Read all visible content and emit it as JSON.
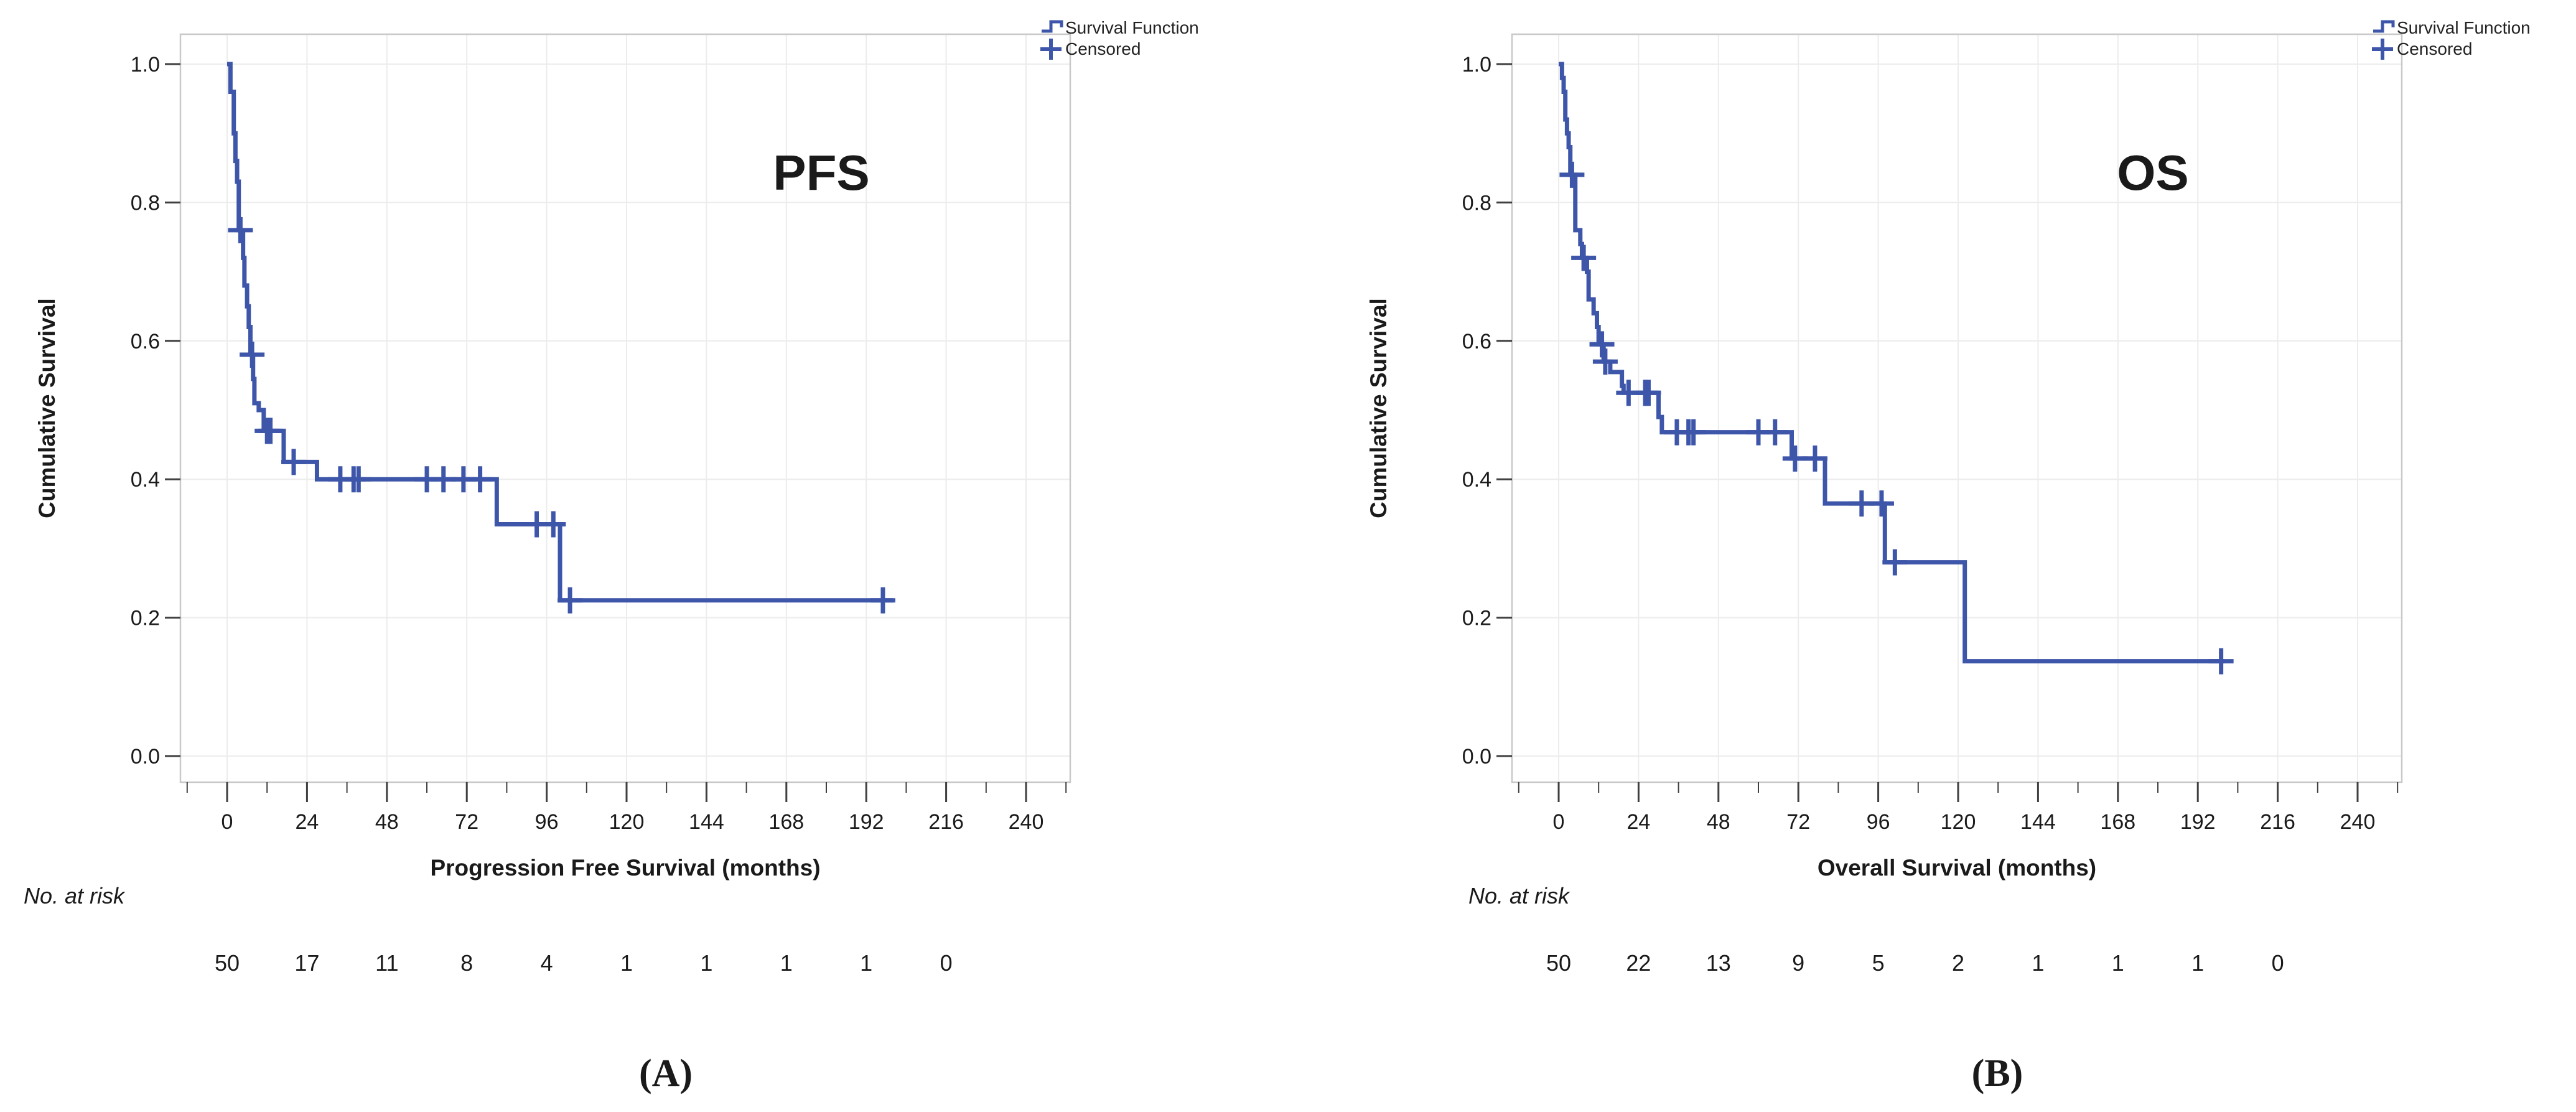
{
  "figure": {
    "description": "Two Kaplan-Meier survival plots side by side",
    "panels": [
      "A",
      "B"
    ]
  },
  "colors": {
    "curve_blue": "#3E56A9",
    "grid": "#ECECEC",
    "frame": "#C9C9C9",
    "tick": "#3F3F3F",
    "text": "#1A1A1A",
    "legend_text": "#222222",
    "background": "#FFFFFF"
  },
  "chart_data": [
    {
      "type": "line",
      "subtype": "kaplan-meier-step",
      "panel_caption": "(A)",
      "plot_label": "PFS",
      "title": "",
      "xlabel": "Progression Free Survival (months)",
      "ylabel": "Cumulative Survival",
      "xticks": [
        0,
        24,
        48,
        72,
        96,
        120,
        144,
        168,
        192,
        216,
        240
      ],
      "yticks": [
        0.0,
        0.2,
        0.4,
        0.6,
        0.8,
        1.0
      ],
      "xlim": [
        -14,
        253
      ],
      "ylim": [
        -0.038,
        1.043
      ],
      "grid": true,
      "legend_position": "top-right-outside",
      "legend": [
        "Survival Function",
        "Censored"
      ],
      "risk_label": "No. at risk",
      "risk_times": [
        0,
        24,
        48,
        72,
        96,
        120,
        144,
        168,
        192,
        216
      ],
      "risk_counts": [
        50,
        17,
        11,
        8,
        4,
        1,
        1,
        1,
        1,
        0
      ],
      "start": [
        0,
        1.0
      ],
      "end_time": 200,
      "steps": [
        [
          1,
          0.96
        ],
        [
          2,
          0.9
        ],
        [
          2.5,
          0.86
        ],
        [
          3,
          0.83
        ],
        [
          3.5,
          0.76
        ],
        [
          4.8,
          0.72
        ],
        [
          5.2,
          0.68
        ],
        [
          6,
          0.65
        ],
        [
          6.5,
          0.62
        ],
        [
          7,
          0.58
        ],
        [
          7.8,
          0.545
        ],
        [
          8.2,
          0.51
        ],
        [
          9.5,
          0.5
        ],
        [
          11,
          0.47
        ],
        [
          17,
          0.425
        ],
        [
          27,
          0.4
        ],
        [
          81,
          0.335
        ],
        [
          100,
          0.225
        ]
      ],
      "censored": [
        [
          4,
          0.76
        ],
        [
          7.5,
          0.58
        ],
        [
          12,
          0.47
        ],
        [
          13,
          0.47
        ],
        [
          20,
          0.425
        ],
        [
          34,
          0.4
        ],
        [
          38,
          0.4
        ],
        [
          39.5,
          0.4
        ],
        [
          60,
          0.4
        ],
        [
          65,
          0.4
        ],
        [
          71,
          0.4
        ],
        [
          76,
          0.4
        ],
        [
          93,
          0.335
        ],
        [
          98,
          0.335
        ],
        [
          103,
          0.225
        ],
        [
          197,
          0.225
        ]
      ]
    },
    {
      "type": "line",
      "subtype": "kaplan-meier-step",
      "panel_caption": "(B)",
      "plot_label": "OS",
      "title": "",
      "xlabel": "Overall Survival (months)",
      "ylabel": "Cumulative Survival",
      "xticks": [
        0,
        24,
        48,
        72,
        96,
        120,
        144,
        168,
        192,
        216,
        240
      ],
      "yticks": [
        0.0,
        0.2,
        0.4,
        0.6,
        0.8,
        1.0
      ],
      "xlim": [
        -14,
        253
      ],
      "ylim": [
        -0.038,
        1.043
      ],
      "grid": true,
      "legend_position": "top-right-outside",
      "legend": [
        "Survival Function",
        "Censored"
      ],
      "risk_label": "No. at risk",
      "risk_times": [
        0,
        24,
        48,
        72,
        96,
        120,
        144,
        168,
        192,
        216
      ],
      "risk_counts": [
        50,
        22,
        13,
        9,
        5,
        2,
        1,
        1,
        1,
        0
      ],
      "start": [
        0,
        1.0
      ],
      "end_time": 200,
      "steps": [
        [
          1,
          0.98
        ],
        [
          1.5,
          0.96
        ],
        [
          2,
          0.92
        ],
        [
          2.5,
          0.9
        ],
        [
          3,
          0.88
        ],
        [
          3.5,
          0.84
        ],
        [
          5,
          0.76
        ],
        [
          6.5,
          0.74
        ],
        [
          7,
          0.72
        ],
        [
          8.5,
          0.7
        ],
        [
          9,
          0.66
        ],
        [
          10.5,
          0.64
        ],
        [
          11.5,
          0.62
        ],
        [
          12,
          0.595
        ],
        [
          13.5,
          0.57
        ],
        [
          15.5,
          0.555
        ],
        [
          19,
          0.535
        ],
        [
          19.5,
          0.525
        ],
        [
          30,
          0.49
        ],
        [
          31,
          0.468
        ],
        [
          70,
          0.43
        ],
        [
          80,
          0.365
        ],
        [
          98,
          0.28
        ],
        [
          122,
          0.137
        ]
      ],
      "censored": [
        [
          4,
          0.84
        ],
        [
          7.5,
          0.72
        ],
        [
          13,
          0.595
        ],
        [
          14,
          0.57
        ],
        [
          21,
          0.525
        ],
        [
          26,
          0.525
        ],
        [
          27,
          0.525
        ],
        [
          35.5,
          0.468
        ],
        [
          39,
          0.468
        ],
        [
          40.5,
          0.468
        ],
        [
          60,
          0.468
        ],
        [
          65,
          0.468
        ],
        [
          71,
          0.43
        ],
        [
          77,
          0.43
        ],
        [
          91,
          0.365
        ],
        [
          97,
          0.365
        ],
        [
          101,
          0.28
        ],
        [
          199,
          0.137
        ]
      ]
    }
  ]
}
